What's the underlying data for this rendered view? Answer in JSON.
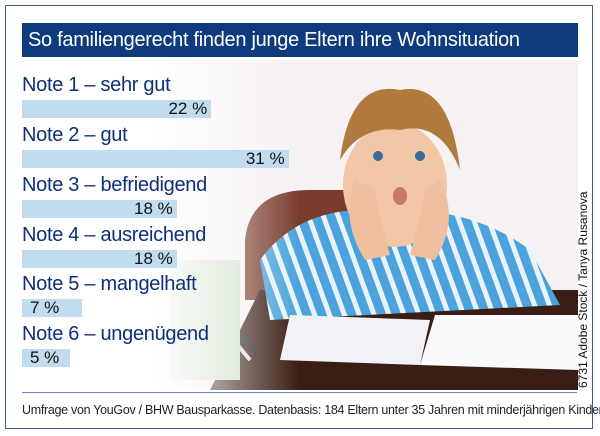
{
  "chart_data": {
    "type": "bar",
    "orientation": "horizontal",
    "title": "So familiengerecht finden junge Eltern ihre Wohnsituation",
    "categories": [
      "Note 1 – sehr gut",
      "Note 2 – gut",
      "Note 3 – befriedigend",
      "Note 4 – ausreichend",
      "Note 5 – mangelhaft",
      "Note 6 – ungenügend"
    ],
    "values": [
      22,
      31,
      18,
      18,
      7,
      5
    ],
    "value_labels": [
      "22 %",
      "31 %",
      "18 %",
      "18 %",
      "7 %",
      "5 %"
    ],
    "unit": "%",
    "bar_color": "#bedaee",
    "title_bg": "#0e3a7e",
    "label_color": "#0e2f7a"
  },
  "footer": "Umfrage von YouGov / BHW Bausparkasse. Datenbasis: 184 Eltern unter 35 Jahren mit minderjährigen Kindern im Haushalt",
  "credit": "6731 Adobe Stock / Tanya Rusanova"
}
